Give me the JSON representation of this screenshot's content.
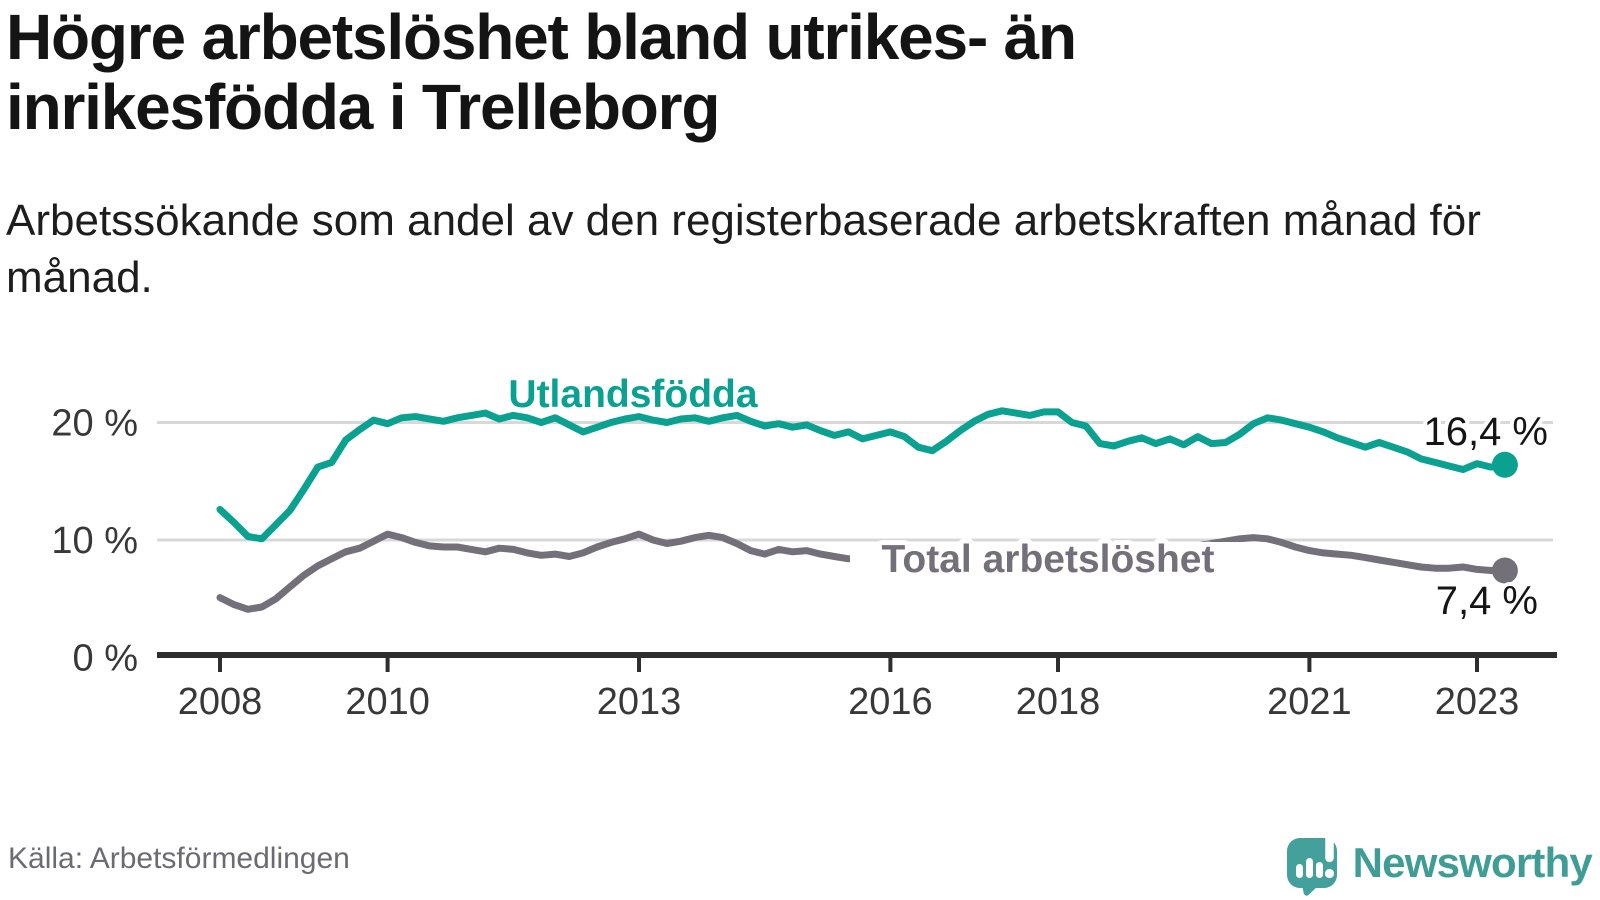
{
  "header": {
    "title": "Högre arbetslöshet bland utrikes- än inrikesfödda i Trelleborg",
    "subtitle": "Arbetssökande som andel av den registerbaserade arbetskraften månad för månad."
  },
  "footer": {
    "source": "Källa: Arbetsförmedlingen",
    "brand": "Newsworthy"
  },
  "colors": {
    "foreign_born_line": "#0aa191",
    "total_line": "#74707a",
    "grid": "#d8d8d8",
    "axis": "#2e2e2e",
    "brand_teal": "#44a09a"
  },
  "chart_data": {
    "type": "line",
    "title": "Högre arbetslöshet bland utrikes- än inrikesfödda i Trelleborg",
    "subtitle": "Arbetssökande som andel av den registerbaserade arbetskraften månad för månad.",
    "x_start": 2008.0,
    "x_step_years": 0.1666667,
    "x_end": 2023.33,
    "x_ticks": [
      2008,
      2010,
      2013,
      2016,
      2018,
      2021,
      2023
    ],
    "y_ticks": [
      {
        "value": 20,
        "label": "20 %"
      },
      {
        "value": 10,
        "label": "10 %"
      },
      {
        "value": 0,
        "label": "0 %"
      }
    ],
    "ylim": [
      0,
      22
    ],
    "grid": true,
    "legend_position": "inline-labels",
    "series": [
      {
        "name": "Utlandsfödda",
        "color": "#0aa191",
        "end_label": "16,4 %",
        "end_value": 16.4,
        "values": [
          12.6,
          11.5,
          10.3,
          10.1,
          11.3,
          12.5,
          14.3,
          16.2,
          16.6,
          18.5,
          19.4,
          20.2,
          19.9,
          20.4,
          20.5,
          20.3,
          20.1,
          20.4,
          20.6,
          20.8,
          20.3,
          20.6,
          20.4,
          20.0,
          20.4,
          19.8,
          19.2,
          19.6,
          20.0,
          20.3,
          20.5,
          20.2,
          20.0,
          20.3,
          20.4,
          20.1,
          20.4,
          20.6,
          20.1,
          19.7,
          19.9,
          19.6,
          19.8,
          19.3,
          18.9,
          19.2,
          18.6,
          18.9,
          19.2,
          18.8,
          17.9,
          17.6,
          18.4,
          19.3,
          20.1,
          20.7,
          21.0,
          20.8,
          20.6,
          20.9,
          20.9,
          20.0,
          19.7,
          18.2,
          18.0,
          18.4,
          18.7,
          18.2,
          18.6,
          18.1,
          18.8,
          18.2,
          18.3,
          19.0,
          19.9,
          20.4,
          20.2,
          19.9,
          19.6,
          19.2,
          18.7,
          18.3,
          17.9,
          18.3,
          17.9,
          17.5,
          16.9,
          16.6,
          16.3,
          16.0,
          16.5,
          16.2,
          16.4
        ]
      },
      {
        "name": "Total arbetslöshet",
        "color": "#74707a",
        "end_label": "7,4 %",
        "end_value": 7.4,
        "values": [
          5.1,
          4.5,
          4.1,
          4.3,
          5.0,
          6.0,
          7.0,
          7.8,
          8.4,
          9.0,
          9.3,
          9.9,
          10.5,
          10.2,
          9.8,
          9.5,
          9.4,
          9.4,
          9.2,
          9.0,
          9.3,
          9.2,
          8.9,
          8.7,
          8.8,
          8.6,
          8.9,
          9.4,
          9.8,
          10.1,
          10.5,
          10.0,
          9.7,
          9.9,
          10.2,
          10.4,
          10.2,
          9.7,
          9.1,
          8.8,
          9.2,
          9.0,
          9.1,
          8.8,
          8.6,
          8.4,
          8.5,
          8.7,
          8.6,
          8.4,
          8.3,
          8.4,
          8.6,
          8.8,
          8.9,
          9.1,
          9.2,
          9.1,
          9.0,
          9.1,
          9.0,
          8.9,
          8.8,
          8.9,
          9.0,
          9.1,
          9.2,
          9.3,
          9.2,
          9.4,
          9.5,
          9.7,
          9.9,
          10.1,
          10.2,
          10.1,
          9.8,
          9.4,
          9.1,
          8.9,
          8.8,
          8.7,
          8.5,
          8.3,
          8.1,
          7.9,
          7.7,
          7.6,
          7.6,
          7.7,
          7.5,
          7.4,
          7.4
        ]
      }
    ]
  }
}
